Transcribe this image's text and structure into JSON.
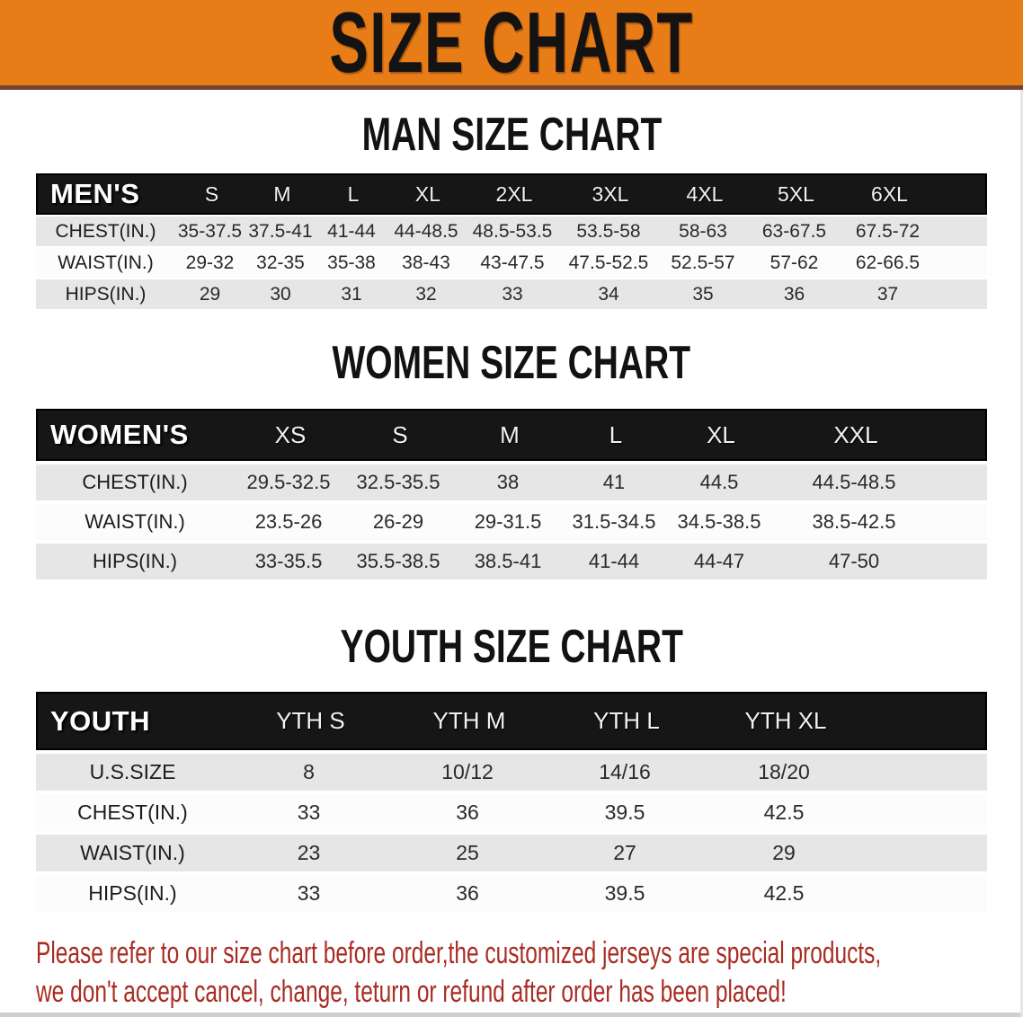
{
  "banner": {
    "title": "SIZE CHART"
  },
  "men_section": {
    "title": "MAN SIZE CHART",
    "table": {
      "corner": "MEN'S",
      "sizes": [
        "S",
        "M",
        "L",
        "XL",
        "2XL",
        "3XL",
        "4XL",
        "5XL",
        "6XL"
      ],
      "rows": [
        {
          "label": "CHEST(IN.)",
          "values": [
            "35-37.5",
            "37.5-41",
            "41-44",
            "44-48.5",
            "48.5-53.5",
            "53.5-58",
            "58-63",
            "63-67.5",
            "67.5-72"
          ]
        },
        {
          "label": "WAIST(IN.)",
          "values": [
            "29-32",
            "32-35",
            "35-38",
            "38-43",
            "43-47.5",
            "47.5-52.5",
            "52.5-57",
            "57-62",
            "62-66.5"
          ]
        },
        {
          "label": "HIPS(IN.)",
          "values": [
            "29",
            "30",
            "31",
            "32",
            "33",
            "34",
            "35",
            "36",
            "37"
          ]
        }
      ]
    }
  },
  "women_section": {
    "title": "WOMEN SIZE CHART",
    "table": {
      "corner": "WOMEN'S",
      "sizes": [
        "XS",
        "S",
        "M",
        "L",
        "XL",
        "XXL"
      ],
      "rows": [
        {
          "label": "CHEST(IN.)",
          "values": [
            "29.5-32.5",
            "32.5-35.5",
            "38",
            "41",
            "44.5",
            "44.5-48.5"
          ]
        },
        {
          "label": "WAIST(IN.)",
          "values": [
            "23.5-26",
            "26-29",
            "29-31.5",
            "31.5-34.5",
            "34.5-38.5",
            "38.5-42.5"
          ]
        },
        {
          "label": "HIPS(IN.)",
          "values": [
            "33-35.5",
            "35.5-38.5",
            "38.5-41",
            "41-44",
            "44-47",
            "47-50"
          ]
        }
      ]
    }
  },
  "youth_section": {
    "title": "YOUTH SIZE CHART",
    "table": {
      "corner": "YOUTH",
      "sizes": [
        "YTH S",
        "YTH M",
        "YTH L",
        "YTH XL"
      ],
      "rows": [
        {
          "label": "U.S.SIZE",
          "values": [
            "8",
            "10/12",
            "14/16",
            "18/20"
          ]
        },
        {
          "label": "CHEST(IN.)",
          "values": [
            "33",
            "36",
            "39.5",
            "42.5"
          ]
        },
        {
          "label": "WAIST(IN.)",
          "values": [
            "23",
            "25",
            "27",
            "29"
          ]
        },
        {
          "label": "HIPS(IN.)",
          "values": [
            "33",
            "36",
            "39.5",
            "42.5"
          ]
        }
      ]
    }
  },
  "footer": {
    "line1": "Please refer to our size chart before order,the customized jerseys are special products,",
    "line2": "we don't accept cancel, change, teturn or refund after order has been placed!"
  },
  "colors": {
    "banner_bg": "#e87d18",
    "banner_border": "#754334",
    "table_header_bg": "#161616",
    "row_gray": "#e6e6e6",
    "row_white": "#fcfcfc",
    "notice_red": "#a82c22"
  }
}
